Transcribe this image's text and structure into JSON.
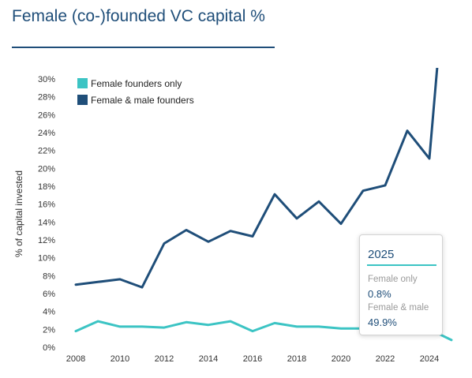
{
  "header": {
    "title": "Female (co-)founded VC capital %"
  },
  "chart_data": {
    "type": "line",
    "title": "Female (co-)founded VC capital %",
    "xlabel": "",
    "ylabel": "% of capital invested",
    "xlim": [
      2008,
      2025
    ],
    "ylim": [
      0,
      30
    ],
    "x_ticks": [
      "2008",
      "2010",
      "2012",
      "2014",
      "2016",
      "2018",
      "2020",
      "2022",
      "2024"
    ],
    "y_ticks": [
      "0%",
      "2%",
      "4%",
      "6%",
      "8%",
      "10%",
      "12%",
      "14%",
      "16%",
      "18%",
      "20%",
      "22%",
      "24%",
      "26%",
      "28%",
      "30%"
    ],
    "legend_position": "top-left",
    "grid": false,
    "x": [
      2008,
      2009,
      2010,
      2011,
      2012,
      2013,
      2014,
      2015,
      2016,
      2017,
      2018,
      2019,
      2020,
      2021,
      2022,
      2023,
      2024,
      2025
    ],
    "series": [
      {
        "name": "Female founders only",
        "color": "#3cc4c4",
        "values": [
          1.8,
          2.9,
          2.3,
          2.3,
          2.2,
          2.8,
          2.5,
          2.9,
          1.8,
          2.7,
          2.3,
          2.3,
          2.1,
          2.1,
          2.1,
          2.2,
          2.0,
          0.8
        ]
      },
      {
        "name": "Female & male founders",
        "color": "#1f4e79",
        "values": [
          7.0,
          7.3,
          7.6,
          6.7,
          11.6,
          13.1,
          11.8,
          13.0,
          12.4,
          17.1,
          14.4,
          16.3,
          13.8,
          17.5,
          18.1,
          24.2,
          21.1,
          49.9
        ]
      }
    ],
    "tooltip": {
      "year": "2025",
      "label_female_only": "Female only",
      "value_female_only": "0.8%",
      "label_female_male": "Female & male",
      "value_female_male": "49.9%"
    }
  }
}
